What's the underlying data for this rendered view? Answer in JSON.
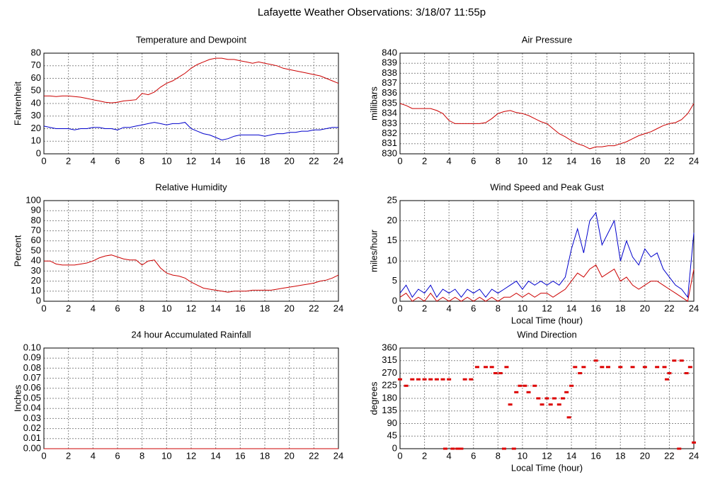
{
  "title": "Lafayette Weather Observations: 3/18/07 11:55p",
  "chart_data": [
    {
      "type": "line",
      "title": "Temperature and Dewpoint",
      "ylabel": "Fahrenheit",
      "x": [
        0,
        0.5,
        1,
        1.5,
        2,
        2.5,
        3,
        3.5,
        4,
        4.5,
        5,
        5.5,
        6,
        6.5,
        7,
        7.5,
        8,
        8.5,
        9,
        9.5,
        10,
        10.5,
        11,
        11.5,
        12,
        12.5,
        13,
        13.5,
        14,
        14.5,
        15,
        15.5,
        16,
        16.5,
        17,
        17.5,
        18,
        18.5,
        19,
        19.5,
        20,
        20.5,
        21,
        21.5,
        22,
        22.5,
        23,
        23.5,
        24
      ],
      "series": [
        {
          "color": "#cc0000",
          "values": [
            46,
            46,
            45.5,
            46,
            46,
            45.5,
            45,
            44,
            43,
            42,
            41,
            40.5,
            41,
            42,
            42.5,
            43,
            48,
            47,
            49,
            53,
            56,
            58,
            61,
            64,
            68,
            71,
            73,
            75,
            76,
            76,
            75,
            75,
            74,
            73,
            72,
            73,
            72,
            71,
            70,
            68,
            67,
            66,
            65,
            64,
            63,
            62,
            60,
            58,
            56
          ]
        },
        {
          "color": "#0000cc",
          "values": [
            22,
            21,
            20,
            20,
            20,
            19,
            20,
            20,
            21,
            21,
            20,
            20,
            19,
            21,
            21,
            22,
            23,
            24,
            25,
            24,
            23,
            24,
            24,
            25,
            20,
            18,
            16,
            15,
            13,
            11,
            12,
            14,
            15,
            15,
            15,
            15,
            14,
            15,
            16,
            16,
            17,
            17,
            18,
            18,
            19,
            19,
            20,
            21,
            21
          ]
        }
      ],
      "xlim": [
        0,
        24
      ],
      "ylim": [
        0,
        80
      ],
      "xticks": [
        0,
        2,
        4,
        6,
        8,
        10,
        12,
        14,
        16,
        18,
        20,
        22,
        24
      ],
      "yticks": [
        0,
        10,
        20,
        30,
        40,
        50,
        60,
        70,
        80
      ],
      "grid": true
    },
    {
      "type": "line",
      "title": "Air Pressure",
      "ylabel": "millibars",
      "x": [
        0,
        0.5,
        1,
        1.5,
        2,
        2.5,
        3,
        3.5,
        4,
        4.5,
        5,
        5.5,
        6,
        6.5,
        7,
        7.5,
        8,
        8.5,
        9,
        9.5,
        10,
        10.5,
        11,
        11.5,
        12,
        12.5,
        13,
        13.5,
        14,
        14.5,
        15,
        15.5,
        16,
        16.5,
        17,
        17.5,
        18,
        18.5,
        19,
        19.5,
        20,
        20.5,
        21,
        21.5,
        22,
        22.5,
        23,
        23.5,
        24
      ],
      "series": [
        {
          "color": "#cc0000",
          "values": [
            835,
            834.8,
            834.5,
            834.5,
            834.5,
            834.5,
            834.3,
            834,
            833.3,
            833,
            833,
            833,
            833,
            833,
            833.1,
            833.5,
            834,
            834.2,
            834.3,
            834.1,
            834,
            833.8,
            833.5,
            833.2,
            833,
            832.5,
            832,
            831.7,
            831.3,
            831,
            830.8,
            830.5,
            830.7,
            830.7,
            830.8,
            830.8,
            831,
            831.2,
            831.5,
            831.8,
            832,
            832.2,
            832.5,
            832.8,
            833,
            833.1,
            833.4,
            834,
            835
          ]
        }
      ],
      "xlim": [
        0,
        24
      ],
      "ylim": [
        830,
        840
      ],
      "xticks": [
        0,
        2,
        4,
        6,
        8,
        10,
        12,
        14,
        16,
        18,
        20,
        22,
        24
      ],
      "yticks": [
        830,
        831,
        832,
        833,
        834,
        835,
        836,
        837,
        838,
        839,
        840
      ],
      "grid": true
    },
    {
      "type": "line",
      "title": "Relative Humidity",
      "ylabel": "Percent",
      "x": [
        0,
        0.5,
        1,
        1.5,
        2,
        2.5,
        3,
        3.5,
        4,
        4.5,
        5,
        5.5,
        6,
        6.5,
        7,
        7.5,
        8,
        8.5,
        9,
        9.5,
        10,
        10.5,
        11,
        11.5,
        12,
        12.5,
        13,
        13.5,
        14,
        14.5,
        15,
        15.5,
        16,
        16.5,
        17,
        17.5,
        18,
        18.5,
        19,
        19.5,
        20,
        20.5,
        21,
        21.5,
        22,
        22.5,
        23,
        23.5,
        24
      ],
      "series": [
        {
          "color": "#cc0000",
          "values": [
            40,
            40,
            37,
            36,
            36,
            36,
            37,
            38,
            40,
            43,
            45,
            46,
            44,
            42,
            41,
            41,
            36,
            40,
            41,
            33,
            28,
            26,
            25,
            23,
            19,
            16,
            13,
            12,
            11,
            10,
            9,
            10,
            10,
            10,
            11,
            11,
            11,
            11,
            12,
            13,
            14,
            15,
            16,
            17,
            18,
            20,
            21,
            23,
            26
          ]
        }
      ],
      "xlim": [
        0,
        24
      ],
      "ylim": [
        0,
        100
      ],
      "xticks": [
        0,
        2,
        4,
        6,
        8,
        10,
        12,
        14,
        16,
        18,
        20,
        22,
        24
      ],
      "yticks": [
        0,
        10,
        20,
        30,
        40,
        50,
        60,
        70,
        80,
        90,
        100
      ],
      "grid": true
    },
    {
      "type": "line",
      "title": "Wind Speed and Peak Gust",
      "ylabel": "miles/hour",
      "xlabel": "Local Time (hour)",
      "x": [
        0,
        0.5,
        1,
        1.5,
        2,
        2.5,
        3,
        3.5,
        4,
        4.5,
        5,
        5.5,
        6,
        6.5,
        7,
        7.5,
        8,
        8.5,
        9,
        9.5,
        10,
        10.5,
        11,
        11.5,
        12,
        12.5,
        13,
        13.5,
        14,
        14.5,
        15,
        15.5,
        16,
        16.5,
        17,
        17.5,
        18,
        18.5,
        19,
        19.5,
        20,
        20.5,
        21,
        21.5,
        22,
        22.5,
        23,
        23.5,
        24
      ],
      "series": [
        {
          "color": "#0000cc",
          "values": [
            2,
            4,
            1,
            3,
            2,
            4,
            1,
            3,
            2,
            3,
            1,
            3,
            2,
            3,
            1,
            3,
            2,
            3,
            4,
            5,
            3,
            5,
            4,
            5,
            4,
            5,
            4,
            6,
            13,
            18,
            12,
            20,
            22,
            14,
            17,
            20,
            10,
            15,
            11,
            9,
            13,
            11,
            12,
            8,
            6,
            4,
            3,
            1,
            17
          ]
        },
        {
          "color": "#cc0000",
          "values": [
            1,
            2,
            0,
            1,
            0,
            2,
            0,
            1,
            0,
            1,
            0,
            1,
            0,
            1,
            0,
            1,
            0,
            1,
            1,
            2,
            1,
            2,
            1,
            2,
            2,
            1,
            2,
            3,
            5,
            7,
            6,
            8,
            9,
            6,
            7,
            8,
            5,
            6,
            4,
            3,
            4,
            5,
            5,
            4,
            3,
            2,
            1,
            0,
            8
          ]
        }
      ],
      "xlim": [
        0,
        24
      ],
      "ylim": [
        0,
        25
      ],
      "xticks": [
        0,
        2,
        4,
        6,
        8,
        10,
        12,
        14,
        16,
        18,
        20,
        22,
        24
      ],
      "yticks": [
        0,
        5,
        10,
        15,
        20,
        25
      ],
      "grid": true
    },
    {
      "type": "line",
      "title": "24 hour Accumulated Rainfall",
      "ylabel": "Inches",
      "x": [
        0,
        24
      ],
      "series": [
        {
          "color": "#cc0000",
          "values": [
            0,
            0
          ]
        }
      ],
      "xlim": [
        0,
        24
      ],
      "ylim": [
        0,
        0.1
      ],
      "xticks": [
        0,
        2,
        4,
        6,
        8,
        10,
        12,
        14,
        16,
        18,
        20,
        22,
        24
      ],
      "yticks": [
        {
          "value": 0,
          "label": "0.00"
        },
        0.01,
        0.02,
        0.03,
        0.04,
        0.05,
        0.06,
        0.07,
        0.08,
        0.09,
        {
          "value": 0.1,
          "label": "0.10"
        }
      ],
      "grid": true
    },
    {
      "type": "scatter",
      "title": "Wind Direction",
      "ylabel": "degrees",
      "xlabel": "Local Time (hour)",
      "x": [
        0,
        0.5,
        1,
        1.5,
        2,
        2.5,
        3,
        3.5,
        3.7,
        4,
        4.3,
        4.7,
        5,
        5.3,
        5.8,
        6.3,
        7,
        7.5,
        7.8,
        8.2,
        8.5,
        8.7,
        9,
        9.3,
        9.5,
        9.8,
        10.2,
        10.5,
        11,
        11.3,
        11.6,
        12,
        12.3,
        12.6,
        13,
        13.3,
        13.6,
        13.8,
        14,
        14.3,
        14.7,
        15,
        16,
        16.5,
        17,
        18,
        19,
        20,
        21,
        21.6,
        21.8,
        22,
        22.4,
        22.8,
        23,
        23.4,
        23.7,
        24
      ],
      "series": [
        {
          "color": "#dd0000",
          "values": [
            248,
            225,
            248,
            248,
            248,
            248,
            248,
            248,
            0,
            248,
            0,
            0,
            0,
            248,
            248,
            292,
            292,
            292,
            270,
            270,
            0,
            292,
            158,
            0,
            202,
            225,
            225,
            202,
            225,
            180,
            158,
            180,
            158,
            180,
            158,
            180,
            202,
            112,
            225,
            292,
            270,
            292,
            315,
            292,
            292,
            292,
            292,
            292,
            292,
            292,
            248,
            270,
            315,
            0,
            315,
            270,
            292,
            22
          ]
        }
      ],
      "xlim": [
        0,
        24
      ],
      "ylim": [
        0,
        360
      ],
      "xticks": [
        0,
        2,
        4,
        6,
        8,
        10,
        12,
        14,
        16,
        18,
        20,
        22,
        24
      ],
      "yticks": [
        0,
        45,
        90,
        135,
        180,
        225,
        270,
        315,
        360
      ],
      "grid": true
    }
  ]
}
